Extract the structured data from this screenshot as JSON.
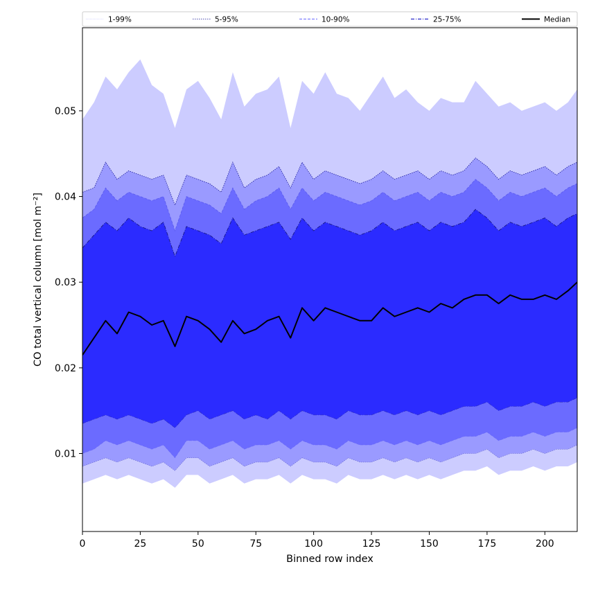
{
  "chart_data": {
    "type": "area",
    "title": "",
    "xlabel": "Binned row index",
    "ylabel": "CO total vertical column [mol m⁻²]",
    "xlim": [
      0,
      214
    ],
    "ylim": [
      0.0009,
      0.0597
    ],
    "xticks": [
      0,
      25,
      50,
      75,
      100,
      125,
      150,
      175,
      200
    ],
    "yticks": [
      0.01,
      0.02,
      0.03,
      0.04,
      0.05
    ],
    "ytick_labels": [
      "0.01",
      "0.02",
      "0.03",
      "0.04",
      "0.05"
    ],
    "grid": false,
    "legend_position": "top",
    "legend": [
      {
        "label": "1-99%",
        "color": "#ccccff",
        "style": "dotted-thin"
      },
      {
        "label": "5-95%",
        "color": "#1a1a99",
        "style": "dotted"
      },
      {
        "label": "10-90%",
        "color": "#6666ff",
        "style": "dashed"
      },
      {
        "label": "25-75%",
        "color": "#2a2acc",
        "style": "dashdot"
      },
      {
        "label": "Median",
        "color": "#000000",
        "style": "solid"
      }
    ],
    "colors": {
      "band_1_99": "#ccccff",
      "band_5_95": "#9a9aff",
      "band_10_90": "#6b6bff",
      "band_25_75": "#2b2bff",
      "median": "#000000"
    },
    "x_points": [
      0,
      5,
      10,
      15,
      20,
      25,
      30,
      35,
      40,
      45,
      50,
      55,
      60,
      65,
      70,
      75,
      80,
      85,
      90,
      95,
      100,
      105,
      110,
      115,
      120,
      125,
      130,
      135,
      140,
      145,
      150,
      155,
      160,
      165,
      170,
      175,
      180,
      185,
      190,
      195,
      200,
      205,
      210,
      214
    ],
    "series": [
      {
        "name": "Median",
        "values": [
          0.0215,
          0.0235,
          0.0255,
          0.024,
          0.0265,
          0.026,
          0.025,
          0.0255,
          0.0225,
          0.026,
          0.0255,
          0.0245,
          0.023,
          0.0255,
          0.024,
          0.0245,
          0.0255,
          0.026,
          0.0235,
          0.027,
          0.0255,
          0.027,
          0.0265,
          0.026,
          0.0255,
          0.0255,
          0.027,
          0.026,
          0.0265,
          0.027,
          0.0265,
          0.0275,
          0.027,
          0.028,
          0.0285,
          0.0285,
          0.0275,
          0.0285,
          0.028,
          0.028,
          0.0285,
          0.028,
          0.029,
          0.03
        ]
      },
      {
        "name": "25-75%",
        "values": [
          [
            0.0135,
            0.034
          ],
          [
            0.014,
            0.0355
          ],
          [
            0.0145,
            0.037
          ],
          [
            0.014,
            0.036
          ],
          [
            0.0145,
            0.0375
          ],
          [
            0.014,
            0.0365
          ],
          [
            0.0135,
            0.036
          ],
          [
            0.014,
            0.037
          ],
          [
            0.013,
            0.033
          ],
          [
            0.0145,
            0.0365
          ],
          [
            0.015,
            0.036
          ],
          [
            0.014,
            0.0355
          ],
          [
            0.0145,
            0.0345
          ],
          [
            0.015,
            0.0375
          ],
          [
            0.014,
            0.0355
          ],
          [
            0.0145,
            0.036
          ],
          [
            0.014,
            0.0365
          ],
          [
            0.015,
            0.037
          ],
          [
            0.014,
            0.035
          ],
          [
            0.015,
            0.0375
          ],
          [
            0.0145,
            0.036
          ],
          [
            0.0145,
            0.037
          ],
          [
            0.014,
            0.0365
          ],
          [
            0.015,
            0.036
          ],
          [
            0.0145,
            0.0355
          ],
          [
            0.0145,
            0.036
          ],
          [
            0.015,
            0.037
          ],
          [
            0.0145,
            0.036
          ],
          [
            0.015,
            0.0365
          ],
          [
            0.0145,
            0.037
          ],
          [
            0.015,
            0.036
          ],
          [
            0.0145,
            0.037
          ],
          [
            0.015,
            0.0365
          ],
          [
            0.0155,
            0.037
          ],
          [
            0.0155,
            0.0385
          ],
          [
            0.016,
            0.0375
          ],
          [
            0.015,
            0.036
          ],
          [
            0.0155,
            0.037
          ],
          [
            0.0155,
            0.0365
          ],
          [
            0.016,
            0.037
          ],
          [
            0.0155,
            0.0375
          ],
          [
            0.016,
            0.0365
          ],
          [
            0.016,
            0.0375
          ],
          [
            0.0165,
            0.038
          ]
        ]
      },
      {
        "name": "10-90%",
        "values": [
          [
            0.01,
            0.0375
          ],
          [
            0.0105,
            0.0385
          ],
          [
            0.0115,
            0.041
          ],
          [
            0.011,
            0.0395
          ],
          [
            0.0115,
            0.0405
          ],
          [
            0.011,
            0.04
          ],
          [
            0.0105,
            0.0395
          ],
          [
            0.011,
            0.04
          ],
          [
            0.0095,
            0.036
          ],
          [
            0.0115,
            0.04
          ],
          [
            0.0115,
            0.0395
          ],
          [
            0.0105,
            0.039
          ],
          [
            0.011,
            0.038
          ],
          [
            0.0115,
            0.041
          ],
          [
            0.0105,
            0.0385
          ],
          [
            0.011,
            0.0395
          ],
          [
            0.011,
            0.04
          ],
          [
            0.0115,
            0.041
          ],
          [
            0.0105,
            0.0385
          ],
          [
            0.0115,
            0.041
          ],
          [
            0.011,
            0.0395
          ],
          [
            0.011,
            0.0405
          ],
          [
            0.0105,
            0.04
          ],
          [
            0.0115,
            0.0395
          ],
          [
            0.011,
            0.039
          ],
          [
            0.011,
            0.0395
          ],
          [
            0.0115,
            0.0405
          ],
          [
            0.011,
            0.0395
          ],
          [
            0.0115,
            0.04
          ],
          [
            0.011,
            0.0405
          ],
          [
            0.0115,
            0.0395
          ],
          [
            0.011,
            0.0405
          ],
          [
            0.0115,
            0.04
          ],
          [
            0.012,
            0.0405
          ],
          [
            0.012,
            0.042
          ],
          [
            0.0125,
            0.041
          ],
          [
            0.0115,
            0.0395
          ],
          [
            0.012,
            0.0405
          ],
          [
            0.012,
            0.04
          ],
          [
            0.0125,
            0.0405
          ],
          [
            0.012,
            0.041
          ],
          [
            0.0125,
            0.04
          ],
          [
            0.0125,
            0.041
          ],
          [
            0.013,
            0.0415
          ]
        ]
      },
      {
        "name": "5-95%",
        "values": [
          [
            0.0085,
            0.0405
          ],
          [
            0.009,
            0.041
          ],
          [
            0.0095,
            0.044
          ],
          [
            0.009,
            0.042
          ],
          [
            0.0095,
            0.043
          ],
          [
            0.009,
            0.0425
          ],
          [
            0.0085,
            0.042
          ],
          [
            0.009,
            0.0425
          ],
          [
            0.008,
            0.039
          ],
          [
            0.0095,
            0.0425
          ],
          [
            0.0095,
            0.042
          ],
          [
            0.0085,
            0.0415
          ],
          [
            0.009,
            0.0405
          ],
          [
            0.0095,
            0.044
          ],
          [
            0.0085,
            0.041
          ],
          [
            0.009,
            0.042
          ],
          [
            0.009,
            0.0425
          ],
          [
            0.0095,
            0.0435
          ],
          [
            0.0085,
            0.041
          ],
          [
            0.0095,
            0.044
          ],
          [
            0.009,
            0.042
          ],
          [
            0.009,
            0.043
          ],
          [
            0.0085,
            0.0425
          ],
          [
            0.0095,
            0.042
          ],
          [
            0.009,
            0.0415
          ],
          [
            0.009,
            0.042
          ],
          [
            0.0095,
            0.043
          ],
          [
            0.009,
            0.042
          ],
          [
            0.0095,
            0.0425
          ],
          [
            0.009,
            0.043
          ],
          [
            0.0095,
            0.042
          ],
          [
            0.009,
            0.043
          ],
          [
            0.0095,
            0.0425
          ],
          [
            0.01,
            0.043
          ],
          [
            0.01,
            0.0445
          ],
          [
            0.0105,
            0.0435
          ],
          [
            0.0095,
            0.042
          ],
          [
            0.01,
            0.043
          ],
          [
            0.01,
            0.0425
          ],
          [
            0.0105,
            0.043
          ],
          [
            0.01,
            0.0435
          ],
          [
            0.0105,
            0.0425
          ],
          [
            0.0105,
            0.0435
          ],
          [
            0.011,
            0.044
          ]
        ]
      },
      {
        "name": "1-99%",
        "values": [
          [
            0.0065,
            0.049
          ],
          [
            0.007,
            0.051
          ],
          [
            0.0075,
            0.054
          ],
          [
            0.007,
            0.0525
          ],
          [
            0.0075,
            0.0545
          ],
          [
            0.007,
            0.056
          ],
          [
            0.0065,
            0.053
          ],
          [
            0.007,
            0.052
          ],
          [
            0.006,
            0.048
          ],
          [
            0.0075,
            0.0525
          ],
          [
            0.0075,
            0.0535
          ],
          [
            0.0065,
            0.0515
          ],
          [
            0.007,
            0.049
          ],
          [
            0.0075,
            0.0545
          ],
          [
            0.0065,
            0.0505
          ],
          [
            0.007,
            0.052
          ],
          [
            0.007,
            0.0525
          ],
          [
            0.0075,
            0.054
          ],
          [
            0.0065,
            0.048
          ],
          [
            0.0075,
            0.0535
          ],
          [
            0.007,
            0.052
          ],
          [
            0.007,
            0.0545
          ],
          [
            0.0065,
            0.052
          ],
          [
            0.0075,
            0.0515
          ],
          [
            0.007,
            0.05
          ],
          [
            0.007,
            0.052
          ],
          [
            0.0075,
            0.054
          ],
          [
            0.007,
            0.0515
          ],
          [
            0.0075,
            0.0525
          ],
          [
            0.007,
            0.051
          ],
          [
            0.0075,
            0.05
          ],
          [
            0.007,
            0.0515
          ],
          [
            0.0075,
            0.051
          ],
          [
            0.008,
            0.051
          ],
          [
            0.008,
            0.0535
          ],
          [
            0.0085,
            0.052
          ],
          [
            0.0075,
            0.0505
          ],
          [
            0.008,
            0.051
          ],
          [
            0.008,
            0.05
          ],
          [
            0.0085,
            0.0505
          ],
          [
            0.008,
            0.051
          ],
          [
            0.0085,
            0.05
          ],
          [
            0.0085,
            0.051
          ],
          [
            0.009,
            0.0525
          ]
        ]
      }
    ]
  }
}
